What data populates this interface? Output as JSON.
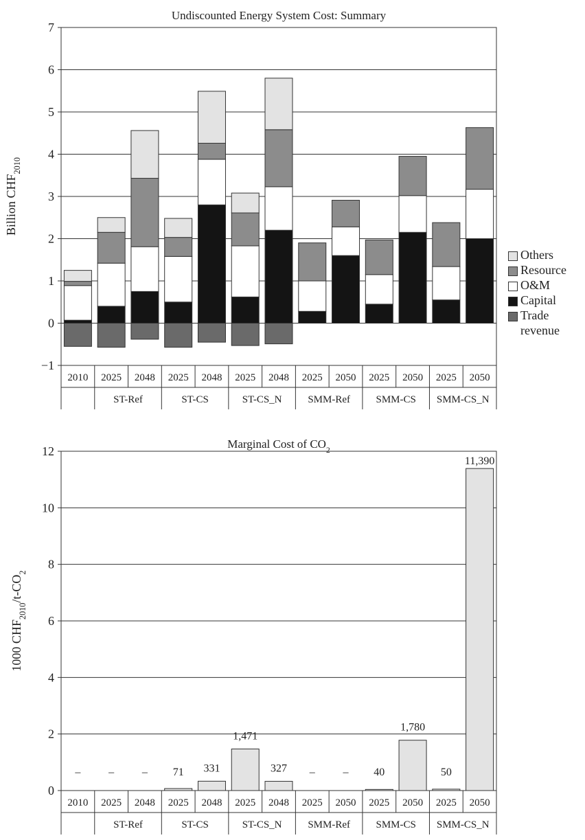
{
  "chart_data": [
    {
      "type": "bar",
      "stacked": true,
      "title": "Undiscounted Energy System Cost: Summary",
      "ylabel": "Billion CHF",
      "ylabel_sub": "2010",
      "ylim": [
        -1,
        7
      ],
      "yticks": [
        "7",
        "6",
        "5",
        "4",
        "3",
        "2",
        "1",
        "0",
        "−1"
      ],
      "categories": [
        "2010",
        "2025",
        "2048",
        "2025",
        "2048",
        "2025",
        "2048",
        "2025",
        "2050",
        "2025",
        "2050",
        "2025",
        "2050"
      ],
      "groups": [
        {
          "label": "",
          "span": 1
        },
        {
          "label": "ST-Ref",
          "span": 2
        },
        {
          "label": "ST-CS",
          "span": 2
        },
        {
          "label": "ST-CS_N",
          "span": 2
        },
        {
          "label": "SMM-Ref",
          "span": 2
        },
        {
          "label": "SMM-CS",
          "span": 2
        },
        {
          "label": "SMM-CS_N",
          "span": 2
        }
      ],
      "series": [
        {
          "name": "Capital",
          "color": "#141414",
          "values": [
            0.07,
            0.4,
            0.75,
            0.5,
            2.8,
            0.62,
            2.2,
            0.28,
            1.6,
            0.45,
            2.15,
            0.55,
            2.0
          ]
        },
        {
          "name": "O&M",
          "color": "#ffffff",
          "values": [
            0.82,
            1.02,
            1.06,
            1.08,
            1.08,
            1.21,
            1.03,
            0.72,
            0.68,
            0.7,
            0.87,
            0.79,
            1.17
          ]
        },
        {
          "name": "Resource",
          "color": "#8c8c8c",
          "values": [
            0.1,
            0.73,
            1.62,
            0.45,
            0.38,
            0.78,
            1.35,
            0.9,
            0.63,
            0.82,
            0.93,
            1.04,
            1.46
          ]
        },
        {
          "name": "Others",
          "color": "#e3e3e3",
          "values": [
            0.26,
            0.35,
            1.13,
            0.45,
            1.23,
            0.47,
            1.22,
            0,
            0,
            0,
            0,
            0,
            0
          ]
        },
        {
          "name": "Trade\nrevenue",
          "color": "#6a6a6a",
          "values": [
            -0.55,
            -0.57,
            -0.38,
            -0.57,
            -0.45,
            -0.53,
            -0.49,
            0,
            0,
            0,
            0,
            0,
            0
          ]
        }
      ],
      "legend_order": [
        "Others",
        "Resource",
        "O&M",
        "Capital",
        "Trade\nrevenue"
      ],
      "legend_position": "right",
      "grid": true
    },
    {
      "type": "bar",
      "title": "Marginal Cost of CO",
      "title_sub": "2",
      "ylabel": "1000 CHF",
      "ylabel_sub1": "2010",
      "ylabel_mid": "/t-CO",
      "ylabel_sub2": "2",
      "ylim": [
        0,
        12
      ],
      "yticks": [
        "12",
        "10",
        "8",
        "6",
        "4",
        "2",
        "0"
      ],
      "categories": [
        "2010",
        "2025",
        "2048",
        "2025",
        "2048",
        "2025",
        "2048",
        "2025",
        "2050",
        "2025",
        "2050",
        "2025",
        "2050"
      ],
      "groups": [
        {
          "label": "",
          "span": 1
        },
        {
          "label": "ST-Ref",
          "span": 2
        },
        {
          "label": "ST-CS",
          "span": 2
        },
        {
          "label": "ST-CS_N",
          "span": 2
        },
        {
          "label": "SMM-Ref",
          "span": 2
        },
        {
          "label": "SMM-CS",
          "span": 2
        },
        {
          "label": "SMM-CS_N",
          "span": 2
        }
      ],
      "values": [
        0,
        0,
        0,
        0.071,
        0.331,
        1.471,
        0.327,
        0,
        0,
        0.04,
        1.78,
        0.05,
        11.39
      ],
      "data_labels": [
        "–",
        "–",
        "–",
        "71",
        "331",
        "1,471",
        "327",
        "–",
        "–",
        "40",
        "1,780",
        "50",
        "11,390"
      ],
      "bar_color": "#e3e3e3",
      "grid": true
    }
  ]
}
